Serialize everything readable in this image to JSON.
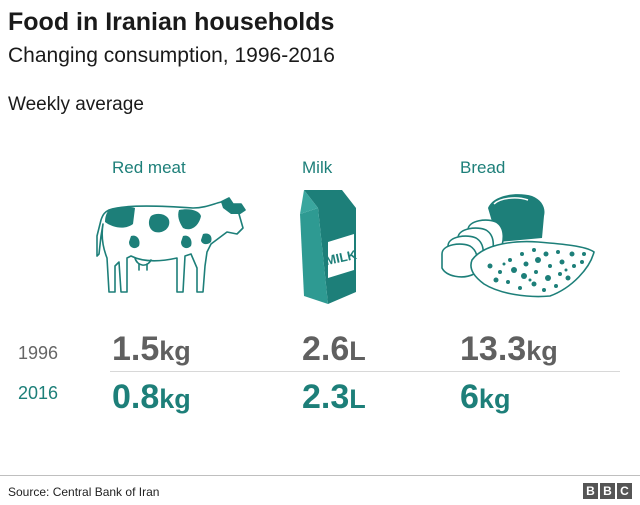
{
  "chart_data": {
    "type": "table",
    "title": "Food in Iranian households",
    "subtitle": "Changing consumption, 1996-2016",
    "note": "Weekly average",
    "categories": [
      "Red meat",
      "Milk",
      "Bread"
    ],
    "rows": [
      {
        "year": "1996",
        "values": [
          {
            "num": "1.5",
            "unit": "kg"
          },
          {
            "num": "2.6",
            "unit": "L"
          },
          {
            "num": "13.3",
            "unit": "kg"
          }
        ]
      },
      {
        "year": "2016",
        "values": [
          {
            "num": "0.8",
            "unit": "kg"
          },
          {
            "num": "2.3",
            "unit": "L"
          },
          {
            "num": "6",
            "unit": "kg"
          }
        ]
      }
    ]
  },
  "icons": {
    "milk_label": "MILK"
  },
  "footer": {
    "source": "Source: Central Bank of Iran",
    "logo_letters": [
      "B",
      "B",
      "C"
    ]
  },
  "colors": {
    "accent": "#1d7f79",
    "old_value": "#606060"
  }
}
